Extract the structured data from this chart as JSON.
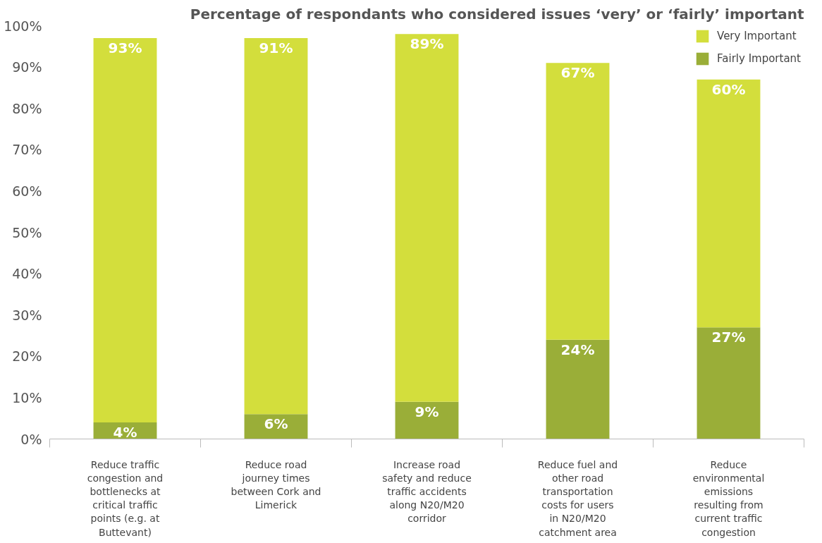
{
  "chart_data": {
    "type": "bar",
    "stacked": true,
    "title": "Percentage of respondants who considered issues ‘very’ or ‘fairly’ important",
    "categories": [
      "Reduce traffic congestion and bottlenecks at critical traffic points (e.g. at Buttevant)",
      "Reduce road journey times between Cork and Limerick",
      "Increase road safety and reduce traffic accidents along N20/M20 corridor",
      "Reduce fuel and other road transportation costs for users in N20/M20 catchment area",
      "Reduce environmental emissions resulting from current traffic congestion"
    ],
    "series": [
      {
        "name": "Fairly Important",
        "color": "#9aae38",
        "values": [
          4,
          6,
          9,
          24,
          27
        ],
        "value_labels": [
          "4%",
          "6%",
          "9%",
          "24%",
          "27%"
        ]
      },
      {
        "name": "Very Important",
        "color": "#d3de3c",
        "values": [
          93,
          91,
          89,
          67,
          60
        ],
        "value_labels": [
          "93%",
          "91%",
          "89%",
          "67%",
          "60%"
        ]
      }
    ],
    "ylim": [
      0,
      100
    ],
    "yticks": [
      {
        "value": 0,
        "label": "0%"
      },
      {
        "value": 10,
        "label": "10%"
      },
      {
        "value": 20,
        "label": "20%"
      },
      {
        "value": 30,
        "label": "30%"
      },
      {
        "value": 40,
        "label": "40%"
      },
      {
        "value": 50,
        "label": "50%"
      },
      {
        "value": 60,
        "label": "60%"
      },
      {
        "value": 70,
        "label": "70%"
      },
      {
        "value": 80,
        "label": "80%"
      },
      {
        "value": 90,
        "label": "90%"
      },
      {
        "value": 100,
        "label": "100%"
      }
    ],
    "legend": "top right",
    "grid": false
  }
}
